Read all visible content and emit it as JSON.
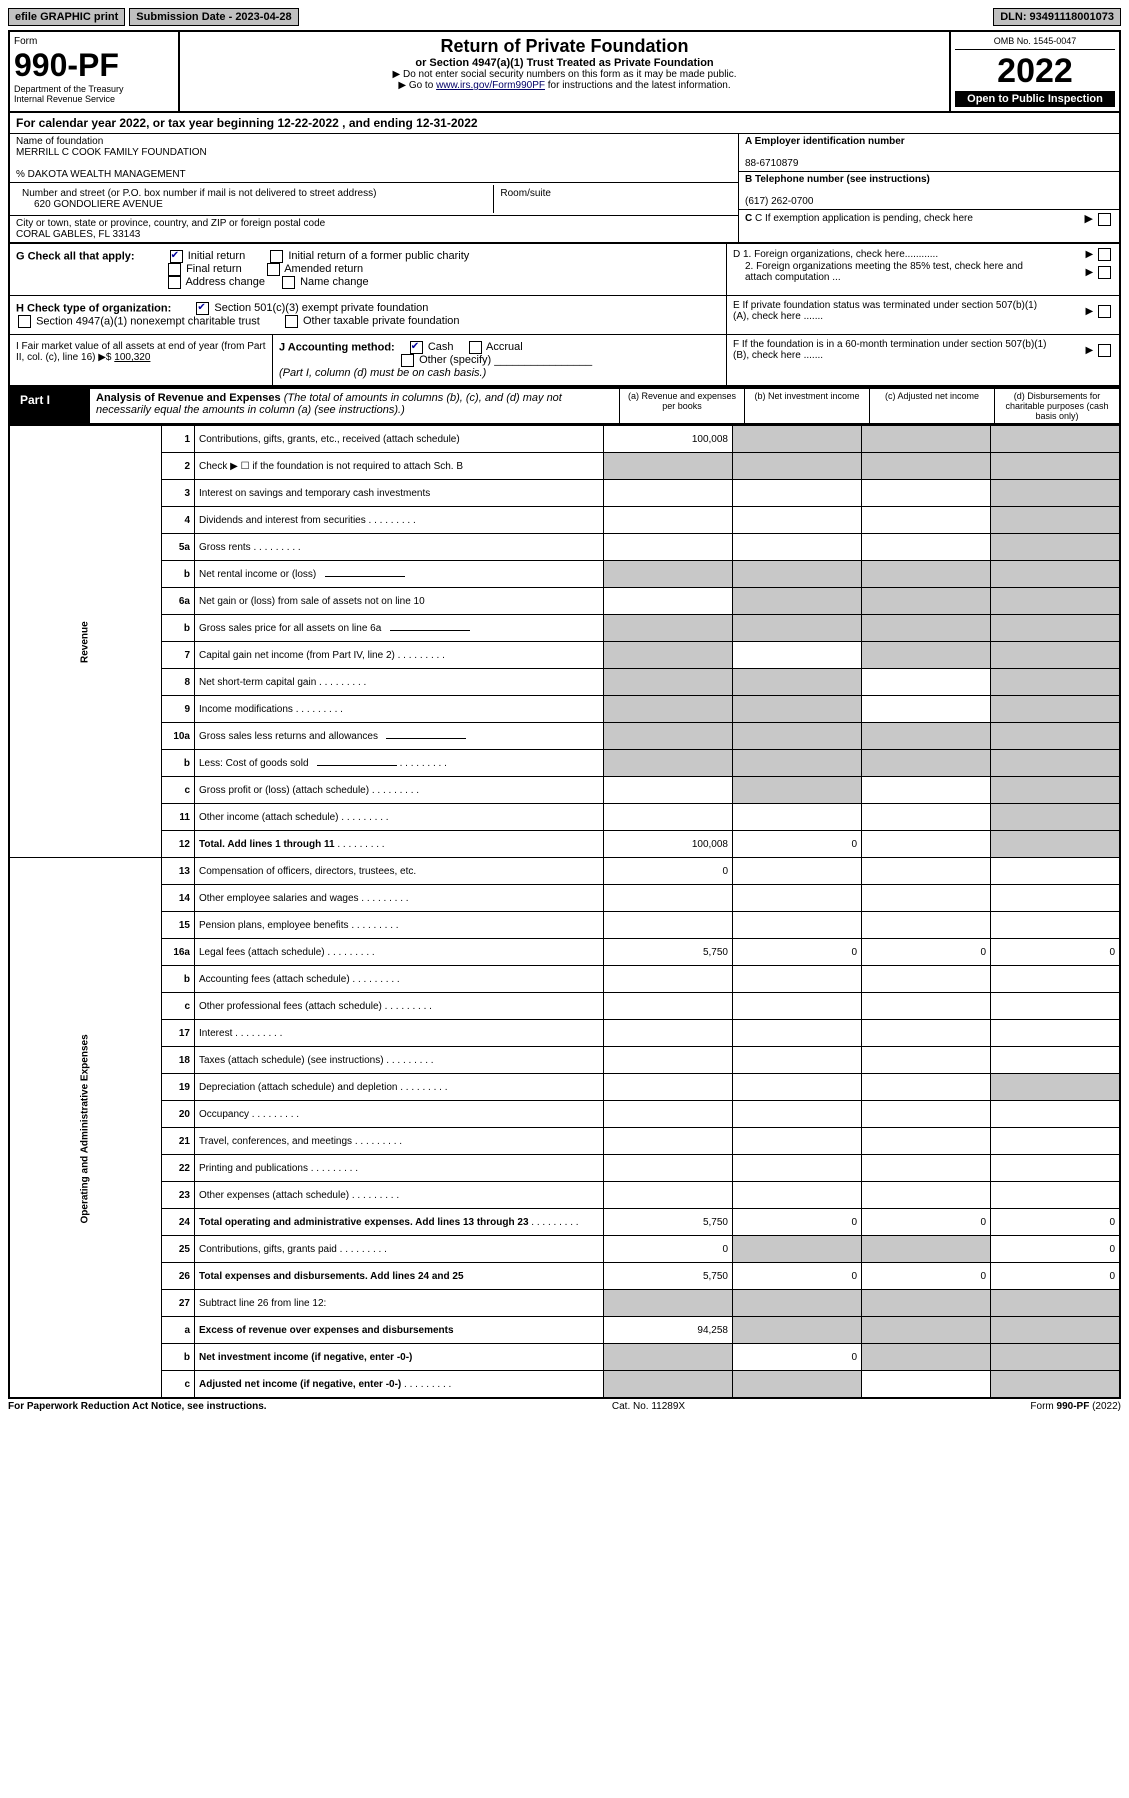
{
  "topbar": {
    "efile": "efile GRAPHIC print",
    "submission": "Submission Date - 2023-04-28",
    "dln": "DLN: 93491118001073"
  },
  "header": {
    "form_label": "Form",
    "form_no": "990-PF",
    "dept": "Department of the Treasury\nInternal Revenue Service",
    "title": "Return of Private Foundation",
    "subtitle": "or Section 4947(a)(1) Trust Treated as Private Foundation",
    "instr1": "▶ Do not enter social security numbers on this form as it may be made public.",
    "instr2_pre": "▶ Go to ",
    "instr2_link": "www.irs.gov/Form990PF",
    "instr2_post": " for instructions and the latest information.",
    "omb": "OMB No. 1545-0047",
    "year": "2022",
    "open": "Open to Public Inspection"
  },
  "cal": "For calendar year 2022, or tax year beginning 12-22-2022                , and ending 12-31-2022",
  "info": {
    "name_label": "Name of foundation",
    "name": "MERRILL C COOK FAMILY FOUNDATION",
    "care_of": "% DAKOTA WEALTH MANAGEMENT",
    "addr_label": "Number and street (or P.O. box number if mail is not delivered to street address)",
    "addr": "620 GONDOLIERE AVENUE",
    "room_label": "Room/suite",
    "city_label": "City or town, state or province, country, and ZIP or foreign postal code",
    "city": "CORAL GABLES, FL  33143",
    "a_label": "A Employer identification number",
    "a_val": "88-6710879",
    "b_label": "B Telephone number (see instructions)",
    "b_val": "(617) 262-0700",
    "c_label": "C If exemption application is pending, check here",
    "d1": "D 1. Foreign organizations, check here............",
    "d2": "2. Foreign organizations meeting the 85% test, check here and attach computation ...",
    "e": "E If private foundation status was terminated under section 507(b)(1)(A), check here .......",
    "f": "F If the foundation is in a 60-month termination under section 507(b)(1)(B), check here .......",
    "g_label": "G Check all that apply:",
    "g_opts": [
      "Initial return",
      "Initial return of a former public charity",
      "Final return",
      "Amended return",
      "Address change",
      "Name change"
    ],
    "h_label": "H Check type of organization:",
    "h_opts": [
      "Section 501(c)(3) exempt private foundation",
      "Section 4947(a)(1) nonexempt charitable trust",
      "Other taxable private foundation"
    ],
    "i_label": "I Fair market value of all assets at end of year (from Part II, col. (c), line 16) ▶$",
    "i_val": "100,320",
    "j_label": "J Accounting method:",
    "j_opts": [
      "Cash",
      "Accrual",
      "Other (specify)"
    ],
    "j_note": "(Part I, column (d) must be on cash basis.)"
  },
  "part1": {
    "label": "Part I",
    "title_bold": "Analysis of Revenue and Expenses",
    "title_note": " (The total of amounts in columns (b), (c), and (d) may not necessarily equal the amounts in column (a) (see instructions).)",
    "col_a": "(a) Revenue and expenses per books",
    "col_b": "(b) Net investment income",
    "col_c": "(c) Adjusted net income",
    "col_d": "(d) Disbursements for charitable purposes (cash basis only)"
  },
  "sections": {
    "revenue": "Revenue",
    "opex": "Operating and Administrative Expenses"
  },
  "rows": [
    {
      "n": "1",
      "d": "Contributions, gifts, grants, etc., received (attach schedule)",
      "a": "100,008",
      "b": "shade",
      "c": "shade",
      "dd": "shade",
      "sec": "rev"
    },
    {
      "n": "2",
      "d": "Check ▶ ☐ if the foundation is not required to attach Sch. B",
      "a": "shade",
      "b": "shade",
      "c": "shade",
      "dd": "shade",
      "sec": "rev",
      "bold_not": true
    },
    {
      "n": "3",
      "d": "Interest on savings and temporary cash investments",
      "a": "",
      "b": "",
      "c": "",
      "dd": "shade",
      "sec": "rev"
    },
    {
      "n": "4",
      "d": "Dividends and interest from securities",
      "a": "",
      "b": "",
      "c": "",
      "dd": "shade",
      "sec": "rev",
      "dots": true
    },
    {
      "n": "5a",
      "d": "Gross rents",
      "a": "",
      "b": "",
      "c": "",
      "dd": "shade",
      "sec": "rev",
      "dots": true
    },
    {
      "n": "b",
      "d": "Net rental income or (loss)",
      "a": "shade",
      "b": "shade",
      "c": "shade",
      "dd": "shade",
      "sec": "rev",
      "inline": true
    },
    {
      "n": "6a",
      "d": "Net gain or (loss) from sale of assets not on line 10",
      "a": "",
      "b": "shade",
      "c": "shade",
      "dd": "shade",
      "sec": "rev"
    },
    {
      "n": "b",
      "d": "Gross sales price for all assets on line 6a",
      "a": "shade",
      "b": "shade",
      "c": "shade",
      "dd": "shade",
      "sec": "rev",
      "inline": true
    },
    {
      "n": "7",
      "d": "Capital gain net income (from Part IV, line 2)",
      "a": "shade",
      "b": "",
      "c": "shade",
      "dd": "shade",
      "sec": "rev",
      "dots": true
    },
    {
      "n": "8",
      "d": "Net short-term capital gain",
      "a": "shade",
      "b": "shade",
      "c": "",
      "dd": "shade",
      "sec": "rev",
      "dots": true
    },
    {
      "n": "9",
      "d": "Income modifications",
      "a": "shade",
      "b": "shade",
      "c": "",
      "dd": "shade",
      "sec": "rev",
      "dots": true
    },
    {
      "n": "10a",
      "d": "Gross sales less returns and allowances",
      "a": "shade",
      "b": "shade",
      "c": "shade",
      "dd": "shade",
      "sec": "rev",
      "inline": true
    },
    {
      "n": "b",
      "d": "Less: Cost of goods sold",
      "a": "shade",
      "b": "shade",
      "c": "shade",
      "dd": "shade",
      "sec": "rev",
      "inline": true,
      "dots": true
    },
    {
      "n": "c",
      "d": "Gross profit or (loss) (attach schedule)",
      "a": "",
      "b": "shade",
      "c": "",
      "dd": "shade",
      "sec": "rev",
      "dots": true
    },
    {
      "n": "11",
      "d": "Other income (attach schedule)",
      "a": "",
      "b": "",
      "c": "",
      "dd": "shade",
      "sec": "rev",
      "dots": true
    },
    {
      "n": "12",
      "d": "Total. Add lines 1 through 11",
      "a": "100,008",
      "b": "0",
      "c": "",
      "dd": "shade",
      "sec": "rev",
      "bold": true,
      "dots": true
    },
    {
      "n": "13",
      "d": "Compensation of officers, directors, trustees, etc.",
      "a": "0",
      "b": "",
      "c": "",
      "dd": "",
      "sec": "op"
    },
    {
      "n": "14",
      "d": "Other employee salaries and wages",
      "a": "",
      "b": "",
      "c": "",
      "dd": "",
      "sec": "op",
      "dots": true
    },
    {
      "n": "15",
      "d": "Pension plans, employee benefits",
      "a": "",
      "b": "",
      "c": "",
      "dd": "",
      "sec": "op",
      "dots": true
    },
    {
      "n": "16a",
      "d": "Legal fees (attach schedule)",
      "a": "5,750",
      "b": "0",
      "c": "0",
      "dd": "0",
      "sec": "op",
      "dots": true
    },
    {
      "n": "b",
      "d": "Accounting fees (attach schedule)",
      "a": "",
      "b": "",
      "c": "",
      "dd": "",
      "sec": "op",
      "dots": true
    },
    {
      "n": "c",
      "d": "Other professional fees (attach schedule)",
      "a": "",
      "b": "",
      "c": "",
      "dd": "",
      "sec": "op",
      "dots": true
    },
    {
      "n": "17",
      "d": "Interest",
      "a": "",
      "b": "",
      "c": "",
      "dd": "",
      "sec": "op",
      "dots": true
    },
    {
      "n": "18",
      "d": "Taxes (attach schedule) (see instructions)",
      "a": "",
      "b": "",
      "c": "",
      "dd": "",
      "sec": "op",
      "dots": true
    },
    {
      "n": "19",
      "d": "Depreciation (attach schedule) and depletion",
      "a": "",
      "b": "",
      "c": "",
      "dd": "shade",
      "sec": "op",
      "dots": true
    },
    {
      "n": "20",
      "d": "Occupancy",
      "a": "",
      "b": "",
      "c": "",
      "dd": "",
      "sec": "op",
      "dots": true
    },
    {
      "n": "21",
      "d": "Travel, conferences, and meetings",
      "a": "",
      "b": "",
      "c": "",
      "dd": "",
      "sec": "op",
      "dots": true
    },
    {
      "n": "22",
      "d": "Printing and publications",
      "a": "",
      "b": "",
      "c": "",
      "dd": "",
      "sec": "op",
      "dots": true
    },
    {
      "n": "23",
      "d": "Other expenses (attach schedule)",
      "a": "",
      "b": "",
      "c": "",
      "dd": "",
      "sec": "op",
      "dots": true
    },
    {
      "n": "24",
      "d": "Total operating and administrative expenses. Add lines 13 through 23",
      "a": "5,750",
      "b": "0",
      "c": "0",
      "dd": "0",
      "sec": "op",
      "bold": true,
      "dots": true
    },
    {
      "n": "25",
      "d": "Contributions, gifts, grants paid",
      "a": "0",
      "b": "shade",
      "c": "shade",
      "dd": "0",
      "sec": "op",
      "dots": true
    },
    {
      "n": "26",
      "d": "Total expenses and disbursements. Add lines 24 and 25",
      "a": "5,750",
      "b": "0",
      "c": "0",
      "dd": "0",
      "sec": "op",
      "bold": true
    },
    {
      "n": "27",
      "d": "Subtract line 26 from line 12:",
      "a": "shade",
      "b": "shade",
      "c": "shade",
      "dd": "shade",
      "sec": "end"
    },
    {
      "n": "a",
      "d": "Excess of revenue over expenses and disbursements",
      "a": "94,258",
      "b": "shade",
      "c": "shade",
      "dd": "shade",
      "sec": "end",
      "bold": true
    },
    {
      "n": "b",
      "d": "Net investment income (if negative, enter -0-)",
      "a": "shade",
      "b": "0",
      "c": "shade",
      "dd": "shade",
      "sec": "end",
      "bold": true
    },
    {
      "n": "c",
      "d": "Adjusted net income (if negative, enter -0-)",
      "a": "shade",
      "b": "shade",
      "c": "",
      "dd": "shade",
      "sec": "end",
      "bold": true,
      "dots": true
    }
  ],
  "footer": {
    "left": "For Paperwork Reduction Act Notice, see instructions.",
    "mid": "Cat. No. 11289X",
    "right": "Form 990-PF (2022)"
  }
}
